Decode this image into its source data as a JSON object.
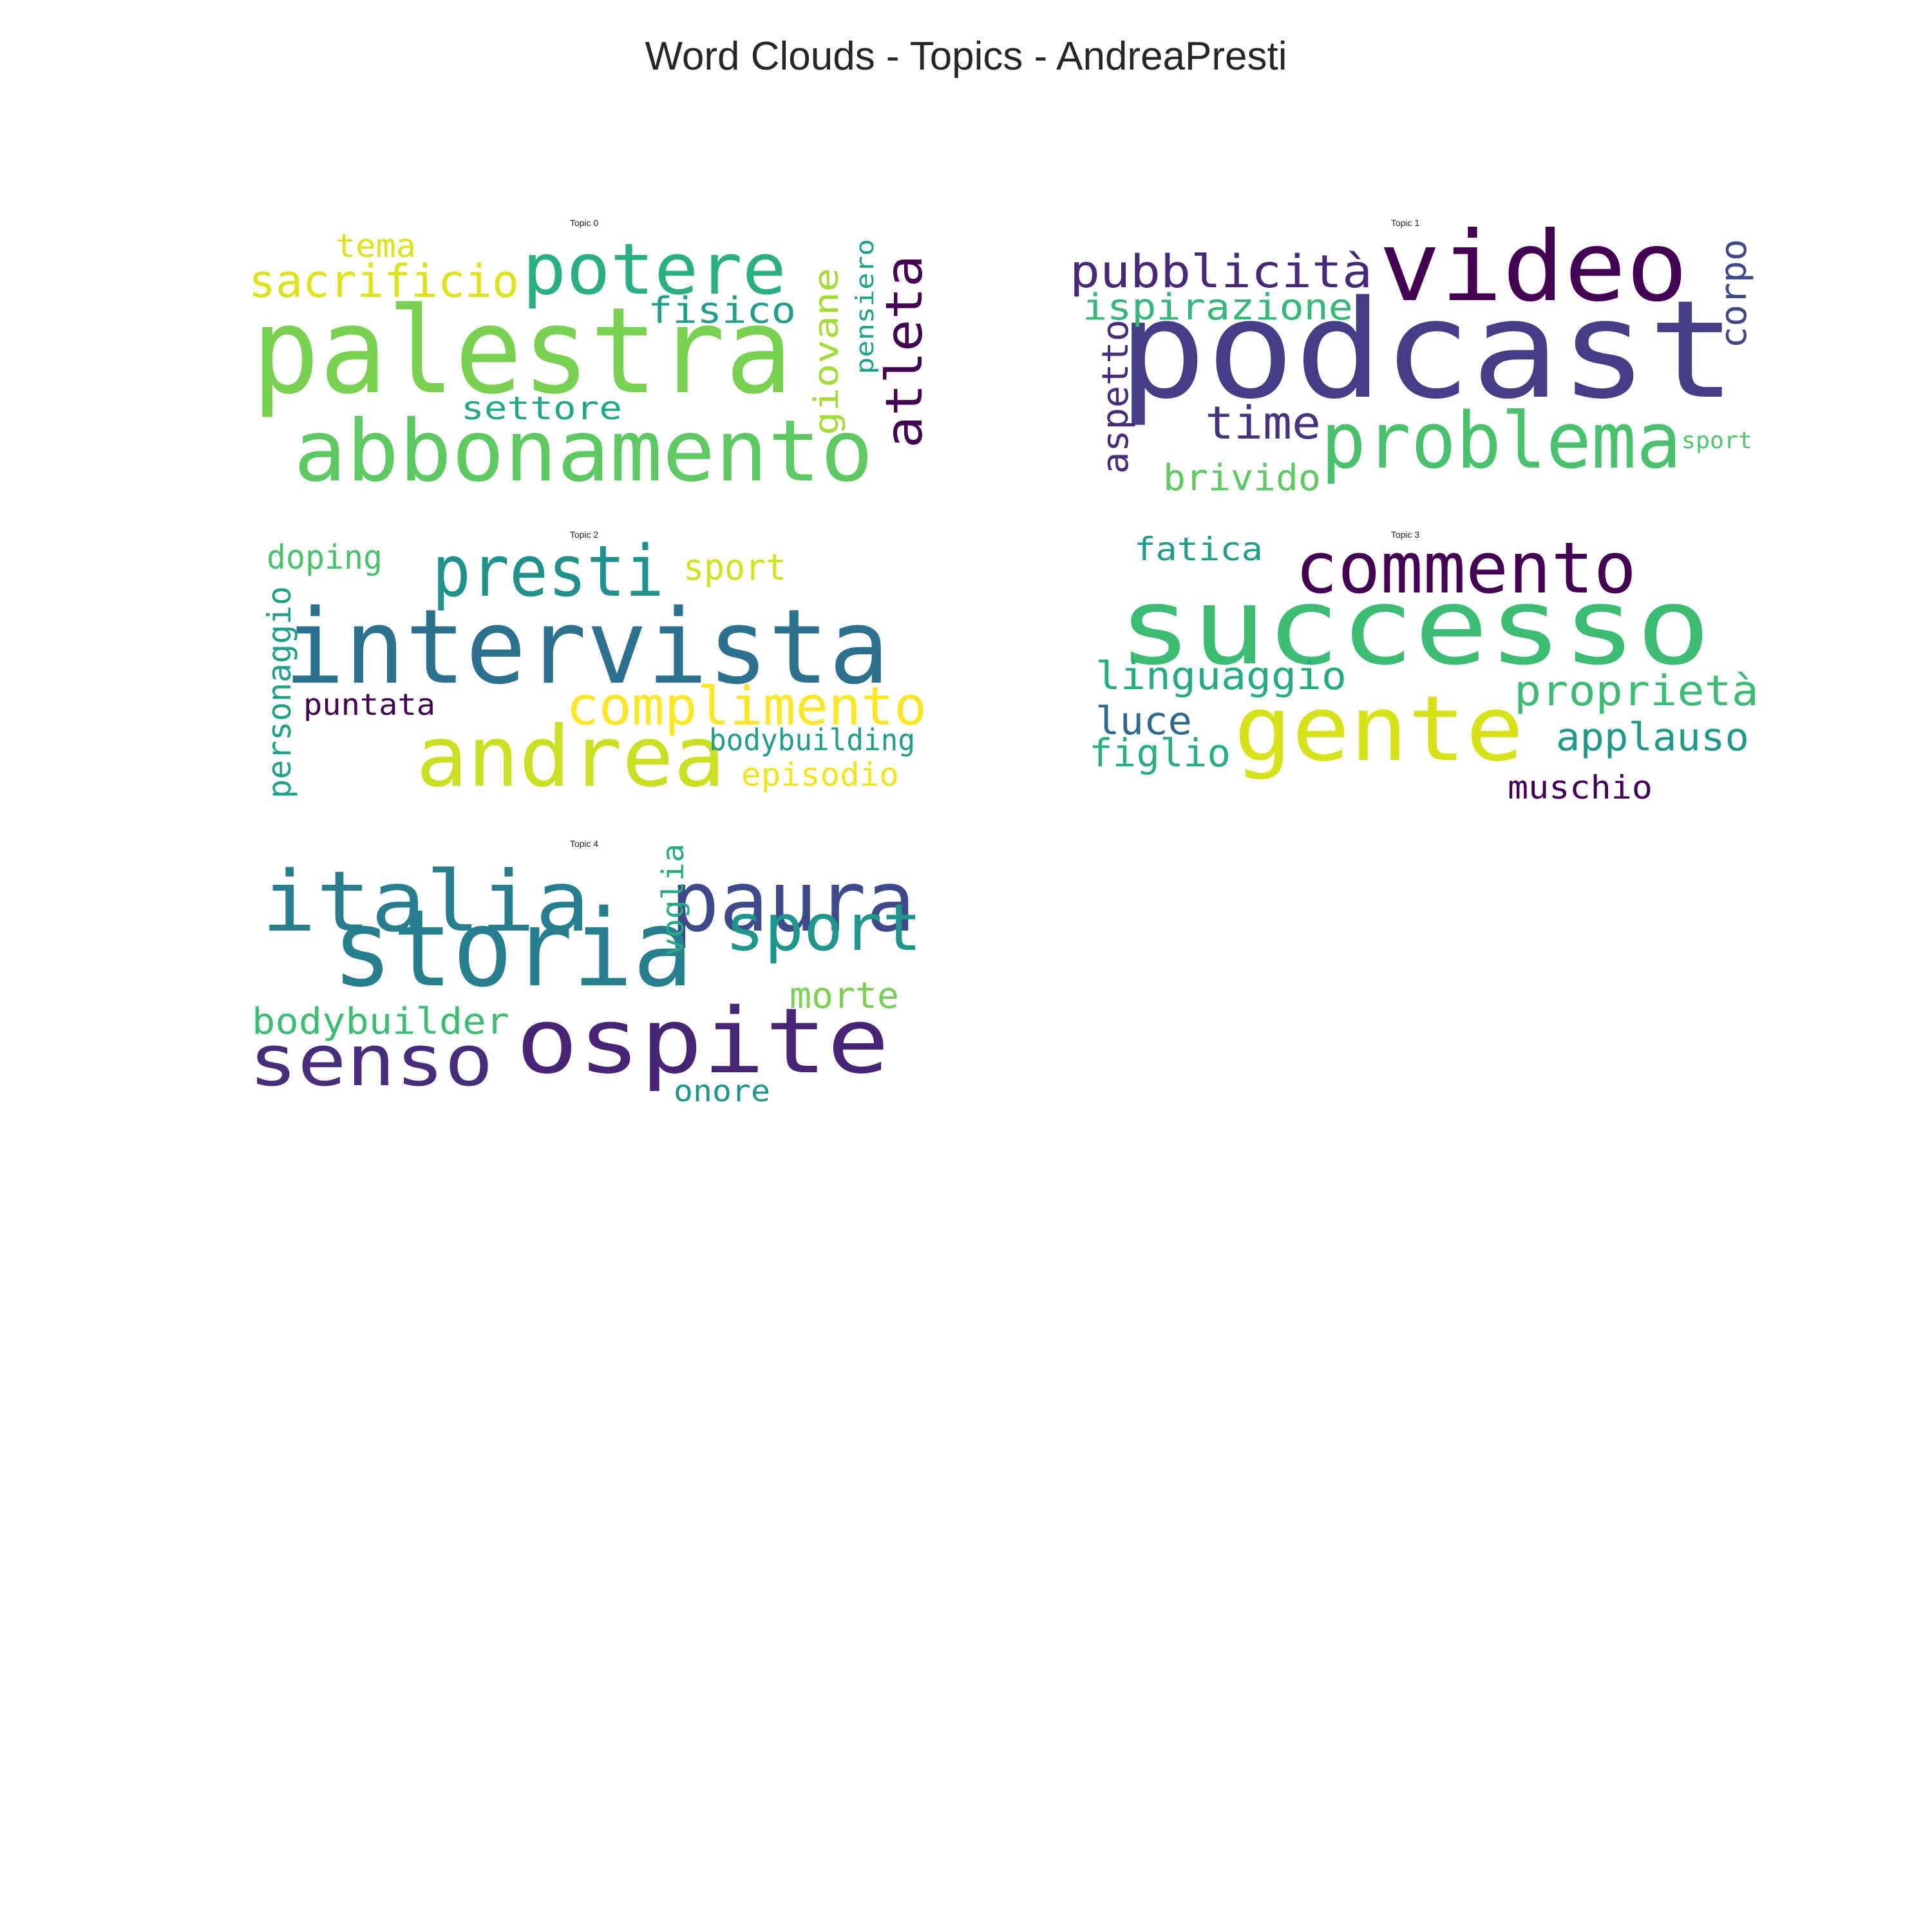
{
  "chart_data": {
    "type": "wordcloud",
    "title": "Word Clouds - Topics - AndreaPresti",
    "panels": [
      {
        "title": "Topic 0",
        "words": [
          {
            "text": "palestra",
            "color": "#7ad151"
          },
          {
            "text": "abbonamento",
            "color": "#5ec962"
          },
          {
            "text": "potere",
            "color": "#2ab07f"
          },
          {
            "text": "sacrificio",
            "color": "#dde318"
          },
          {
            "text": "tema",
            "color": "#dde318"
          },
          {
            "text": "fisico",
            "color": "#1f9e89"
          },
          {
            "text": "settore",
            "color": "#22a884"
          },
          {
            "text": "giovane",
            "color": "#a5db36"
          },
          {
            "text": "pensiero",
            "color": "#1fa187"
          },
          {
            "text": "atleta",
            "color": "#440154"
          }
        ]
      },
      {
        "title": "Topic 1",
        "words": [
          {
            "text": "podcast",
            "color": "#433e85"
          },
          {
            "text": "video",
            "color": "#440154"
          },
          {
            "text": "pubblicità",
            "color": "#482878"
          },
          {
            "text": "ispirazione",
            "color": "#35b779"
          },
          {
            "text": "corpo",
            "color": "#3e4989"
          },
          {
            "text": "aspetto",
            "color": "#472d7b"
          },
          {
            "text": "time",
            "color": "#46327e"
          },
          {
            "text": "problema",
            "color": "#4ac16d"
          },
          {
            "text": "brivido",
            "color": "#5ec962"
          },
          {
            "text": "sport",
            "color": "#52c569"
          }
        ]
      },
      {
        "title": "Topic 2",
        "words": [
          {
            "text": "intervista",
            "color": "#2c728e"
          },
          {
            "text": "presti",
            "color": "#21918c"
          },
          {
            "text": "andrea",
            "color": "#c8e020"
          },
          {
            "text": "complimento",
            "color": "#fde725"
          },
          {
            "text": "doping",
            "color": "#4ac16d"
          },
          {
            "text": "sport",
            "color": "#d2e21b"
          },
          {
            "text": "personaggio",
            "color": "#1fa187"
          },
          {
            "text": "puntata",
            "color": "#440154"
          },
          {
            "text": "bodybuilding",
            "color": "#1f9e89"
          },
          {
            "text": "episodio",
            "color": "#f1e51d"
          }
        ]
      },
      {
        "title": "Topic 3",
        "words": [
          {
            "text": "successo",
            "color": "#3dbc74"
          },
          {
            "text": "commento",
            "color": "#440154"
          },
          {
            "text": "fatica",
            "color": "#1f9e89"
          },
          {
            "text": "gente",
            "color": "#d8e219"
          },
          {
            "text": "linguaggio",
            "color": "#25ab82"
          },
          {
            "text": "proprietà",
            "color": "#3dbc74"
          },
          {
            "text": "luce",
            "color": "#31688e"
          },
          {
            "text": "figlio",
            "color": "#29af7f"
          },
          {
            "text": "applauso",
            "color": "#1f9a8a"
          },
          {
            "text": "muschio",
            "color": "#440154"
          }
        ]
      },
      {
        "title": "Topic 4",
        "words": [
          {
            "text": "italia",
            "color": "#287d8e"
          },
          {
            "text": "paura",
            "color": "#3e4a89"
          },
          {
            "text": "storia",
            "color": "#277f8e"
          },
          {
            "text": "sport",
            "color": "#1f968b"
          },
          {
            "text": "voglia",
            "color": "#25ab82"
          },
          {
            "text": "morte",
            "color": "#7ad151"
          },
          {
            "text": "bodybuilder",
            "color": "#3dbc74"
          },
          {
            "text": "senso",
            "color": "#472d7b"
          },
          {
            "text": "ospite",
            "color": "#482475"
          },
          {
            "text": "onore",
            "color": "#1f968b"
          }
        ]
      }
    ]
  }
}
